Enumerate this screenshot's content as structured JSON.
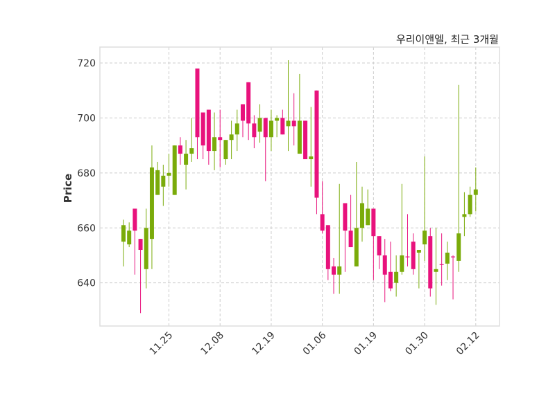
{
  "chart_data": {
    "type": "candlestick",
    "title": "우리이앤엘, 최근 3개월",
    "xlabel": "",
    "ylabel": "Price",
    "ylim": [
      624.3,
      725.8
    ],
    "yticks": [
      640,
      660,
      680,
      700,
      720
    ],
    "xticks": [
      {
        "index": 8,
        "label": "11.25"
      },
      {
        "index": 17,
        "label": "12.08"
      },
      {
        "index": 26,
        "label": "12.19"
      },
      {
        "index": 35,
        "label": "01.06"
      },
      {
        "index": 44,
        "label": "01.19"
      },
      {
        "index": 53,
        "label": "01.30"
      },
      {
        "index": 62,
        "label": "02.12"
      }
    ],
    "grid": true,
    "colors": {
      "up": "#7aab0a",
      "down": "#e8127c",
      "grid": "#cccccc",
      "frame": "#dddddd"
    },
    "ohlc": [
      [
        655,
        663,
        646,
        661
      ],
      [
        654,
        662,
        653,
        659
      ],
      [
        667,
        667,
        643,
        659
      ],
      [
        656,
        656,
        629,
        652
      ],
      [
        645,
        667,
        638,
        660
      ],
      [
        656,
        690,
        645,
        682
      ],
      [
        672,
        684,
        672,
        681
      ],
      [
        675,
        683,
        668,
        679
      ],
      [
        679,
        687,
        675,
        680
      ],
      [
        672,
        690,
        672,
        690
      ],
      [
        690,
        693,
        683,
        687
      ],
      [
        683,
        692,
        674,
        687
      ],
      [
        687,
        700,
        684,
        689
      ],
      [
        718,
        718,
        685,
        693
      ],
      [
        702,
        702,
        685,
        690
      ],
      [
        703,
        703,
        683,
        688
      ],
      [
        688,
        702,
        681,
        693
      ],
      [
        693,
        703,
        682,
        692
      ],
      [
        685,
        692,
        683,
        692
      ],
      [
        692,
        699,
        685,
        694
      ],
      [
        694,
        703,
        688,
        698
      ],
      [
        705,
        705,
        693,
        699
      ],
      [
        713,
        713,
        692,
        698
      ],
      [
        698,
        701,
        689,
        693
      ],
      [
        695,
        705,
        691,
        700
      ],
      [
        700,
        700,
        677,
        693
      ],
      [
        693,
        703,
        688,
        699
      ],
      [
        699,
        701,
        693,
        700
      ],
      [
        700,
        703,
        694,
        694
      ],
      [
        697,
        721,
        688,
        699
      ],
      [
        699,
        709,
        690,
        697
      ],
      [
        687,
        716,
        687,
        699
      ],
      [
        699,
        699,
        685,
        685
      ],
      [
        685,
        704,
        675,
        686
      ],
      [
        710,
        710,
        665,
        671
      ],
      [
        665,
        677,
        658,
        659
      ],
      [
        661,
        661,
        641,
        645
      ],
      [
        646,
        649,
        636,
        643
      ],
      [
        643,
        676,
        636,
        646
      ],
      [
        669,
        669,
        644,
        659
      ],
      [
        659,
        672,
        653,
        653
      ],
      [
        646,
        684,
        646,
        660
      ],
      [
        660,
        675,
        655,
        669
      ],
      [
        661,
        674,
        661,
        667
      ],
      [
        667,
        667,
        641,
        657
      ],
      [
        657,
        657,
        645,
        650
      ],
      [
        650,
        656,
        633,
        643
      ],
      [
        644,
        655,
        637,
        638
      ],
      [
        640,
        650,
        635,
        644
      ],
      [
        644,
        676,
        643,
        650
      ],
      [
        649.6,
        665,
        646,
        649.4
      ],
      [
        655,
        658,
        643,
        645
      ],
      [
        651,
        652,
        638,
        652
      ],
      [
        654,
        686,
        648,
        659
      ],
      [
        657,
        660,
        635,
        638
      ],
      [
        644,
        660,
        632,
        645
      ],
      [
        646.8,
        658,
        639,
        646.6
      ],
      [
        647,
        655,
        641,
        651
      ],
      [
        649.6,
        650,
        634,
        649.4
      ],
      [
        648,
        712,
        644,
        658
      ],
      [
        664,
        673,
        657,
        665
      ],
      [
        665,
        675,
        664,
        672
      ],
      [
        672,
        682,
        666,
        674
      ]
    ]
  }
}
